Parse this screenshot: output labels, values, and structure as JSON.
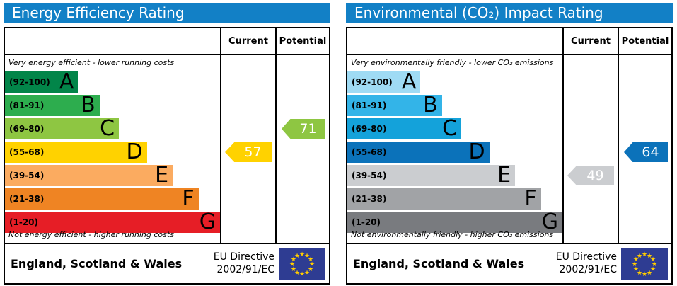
{
  "colors": {
    "title_bg": "#1280c6",
    "border": "#000000",
    "flag_bg": "#2e3c92",
    "star": "#ffcc00"
  },
  "panels": [
    {
      "title": "Energy Efficiency Rating",
      "header": {
        "current": "Current",
        "potential": "Potential"
      },
      "top_caption": "Very energy efficient - lower running costs",
      "bottom_caption": "Not energy efficient - higher running costs",
      "bands": [
        {
          "letter": "A",
          "range": "(92-100)",
          "color": "#028549",
          "width_pct": 34
        },
        {
          "letter": "B",
          "range": "(81-91)",
          "color": "#2dad4e",
          "width_pct": 44
        },
        {
          "letter": "C",
          "range": "(69-80)",
          "color": "#8ec642",
          "width_pct": 53
        },
        {
          "letter": "D",
          "range": "(55-68)",
          "color": "#ffd200",
          "width_pct": 66
        },
        {
          "letter": "E",
          "range": "(39-54)",
          "color": "#fbab60",
          "width_pct": 78
        },
        {
          "letter": "F",
          "range": "(21-38)",
          "color": "#ef8423",
          "width_pct": 90
        },
        {
          "letter": "G",
          "range": "(1-20)",
          "color": "#e61e26",
          "width_pct": 100
        }
      ],
      "current": {
        "value": 57,
        "band_index": 3,
        "color": "#ffd200"
      },
      "potential": {
        "value": 71,
        "band_index": 2,
        "color": "#8ec642"
      },
      "footer": {
        "region": "England, Scotland & Wales",
        "directive_line1": "EU Directive",
        "directive_line2": "2002/91/EC"
      }
    },
    {
      "title": "Environmental (CO₂) Impact Rating",
      "header": {
        "current": "Current",
        "potential": "Potential"
      },
      "top_caption": "Very environmentally friendly - lower CO₂ emissions",
      "bottom_caption": "Not environmentally friendly - higher CO₂ emissions",
      "bands": [
        {
          "letter": "A",
          "range": "(92-100)",
          "color": "#9fdbf4",
          "width_pct": 34
        },
        {
          "letter": "B",
          "range": "(81-91)",
          "color": "#33b4e8",
          "width_pct": 44
        },
        {
          "letter": "C",
          "range": "(69-80)",
          "color": "#14a2da",
          "width_pct": 53
        },
        {
          "letter": "D",
          "range": "(55-68)",
          "color": "#0b72ba",
          "width_pct": 66
        },
        {
          "letter": "E",
          "range": "(39-54)",
          "color": "#cbcdd0",
          "width_pct": 78
        },
        {
          "letter": "F",
          "range": "(21-38)",
          "color": "#a1a3a6",
          "width_pct": 90
        },
        {
          "letter": "G",
          "range": "(1-20)",
          "color": "#797b7f",
          "width_pct": 100
        }
      ],
      "current": {
        "value": 49,
        "band_index": 4,
        "color": "#cbcdd0"
      },
      "potential": {
        "value": 64,
        "band_index": 3,
        "color": "#0b72ba"
      },
      "footer": {
        "region": "England, Scotland & Wales",
        "directive_line1": "EU Directive",
        "directive_line2": "2002/91/EC"
      }
    }
  ],
  "chart_data": [
    {
      "type": "bar",
      "title": "Energy Efficiency Rating",
      "categories": [
        "A (92-100)",
        "B (81-91)",
        "C (69-80)",
        "D (55-68)",
        "E (39-54)",
        "F (21-38)",
        "G (1-20)"
      ],
      "band_width_pct": [
        34,
        44,
        53,
        66,
        78,
        90,
        100
      ],
      "current": 57,
      "current_band": "D",
      "potential": 71,
      "potential_band": "C",
      "top_caption": "Very energy efficient - lower running costs",
      "bottom_caption": "Not energy efficient - higher running costs",
      "legend_position": "column headers: Current, Potential"
    },
    {
      "type": "bar",
      "title": "Environmental (CO₂) Impact Rating",
      "categories": [
        "A (92-100)",
        "B (81-91)",
        "C (69-80)",
        "D (55-68)",
        "E (39-54)",
        "F (21-38)",
        "G (1-20)"
      ],
      "band_width_pct": [
        34,
        44,
        53,
        66,
        78,
        90,
        100
      ],
      "current": 49,
      "current_band": "E",
      "potential": 64,
      "potential_band": "D",
      "top_caption": "Very environmentally friendly - lower CO₂ emissions",
      "bottom_caption": "Not environmentally friendly - higher CO₂ emissions",
      "legend_position": "column headers: Current, Potential"
    }
  ]
}
